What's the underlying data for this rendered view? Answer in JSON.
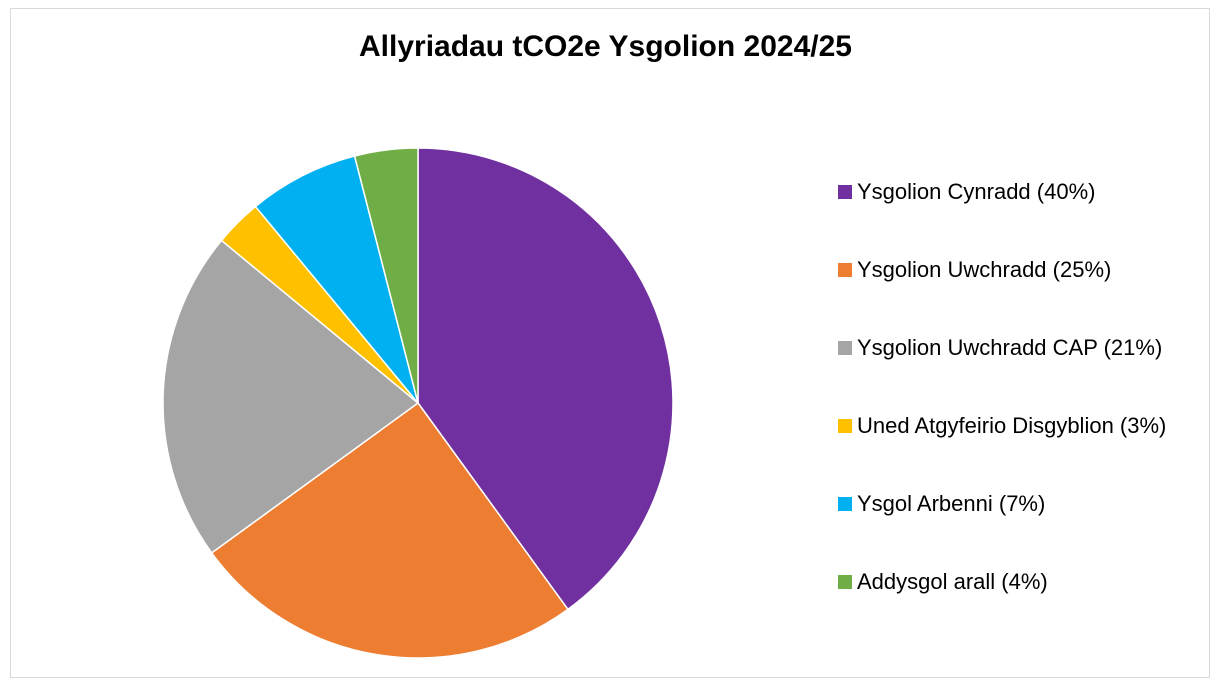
{
  "chart_data": {
    "type": "pie",
    "title": "Allyriadau tCO2e Ysgolion 2024/25",
    "categories": [
      "Ysgolion Cynradd (40%)",
      "Ysgolion Uwchradd (25%)",
      "Ysgolion Uwchradd CAP (21%)",
      "Uned Atgyfeirio Disgyblion (3%)",
      "Ysgol Arbenni (7%)",
      "Addysgol arall (4%)"
    ],
    "values": [
      40,
      25,
      21,
      3,
      7,
      4
    ],
    "colors": [
      "#7030a0",
      "#ed7d31",
      "#a5a5a5",
      "#ffc000",
      "#00b0f0",
      "#70ad47"
    ],
    "legend": "right"
  }
}
